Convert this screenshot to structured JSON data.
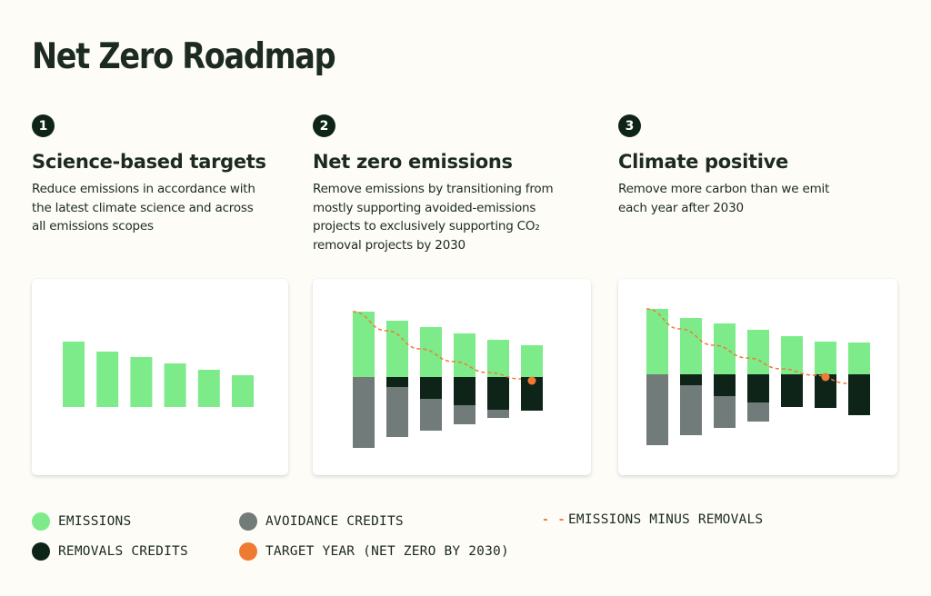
{
  "title": "Net Zero Roadmap",
  "colors": {
    "emissions": "#7deb8a",
    "avoidance": "#717b79",
    "removals": "#0f2418",
    "target": "#ef7b33"
  },
  "steps": [
    {
      "number": "1",
      "title": "Science-based targets",
      "desc_lines": [
        "Reduce emissions in accordance with",
        "the latest climate science and across",
        "all emissions scopes"
      ]
    },
    {
      "number": "2",
      "title": "Net zero emissions",
      "desc_lines": [
        "Remove emissions by transitioning from",
        "mostly supporting avoided-emissions",
        "projects to exclusively supporting CO₂",
        "removal projects by 2030"
      ]
    },
    {
      "number": "3",
      "title": "Climate positive",
      "desc_lines": [
        "Remove more carbon than we emit",
        "each year after 2030"
      ]
    }
  ],
  "legend": {
    "emissions": "EMISSIONS",
    "avoidance": "AVOIDANCE CREDITS",
    "emissions_minus_removals": "EMISSIONS MINUS REMOVALS",
    "removals": "REMOVALS CREDITS",
    "target": "TARGET YEAR (NET ZERO BY 2030)"
  },
  "chart_data": [
    {
      "type": "bar",
      "title": "",
      "ylim": [
        -80,
        80
      ],
      "series": [
        {
          "name": "EMISSIONS",
          "values": [
            72,
            61,
            55,
            48,
            41,
            35
          ]
        }
      ]
    },
    {
      "type": "bar",
      "title": "",
      "ylim": [
        -80,
        80
      ],
      "series": [
        {
          "name": "EMISSIONS",
          "values": [
            72,
            62,
            55,
            48,
            41,
            35
          ]
        },
        {
          "name": "REMOVALS CREDITS",
          "values": [
            0,
            11,
            24,
            31,
            36,
            37
          ]
        },
        {
          "name": "AVOIDANCE CREDITS",
          "values": [
            78,
            55,
            35,
            21,
            9,
            0
          ]
        },
        {
          "name": "EMISSIONS MINUS REMOVALS",
          "values": [
            72,
            51,
            31,
            17,
            5,
            -2
          ]
        }
      ],
      "target_index": 5
    },
    {
      "type": "bar",
      "title": "",
      "ylim": [
        -80,
        80
      ],
      "series": [
        {
          "name": "EMISSIONS",
          "values": [
            72,
            62,
            56,
            49,
            42,
            36,
            35
          ]
        },
        {
          "name": "REMOVALS CREDITS",
          "values": [
            0,
            12,
            24,
            31,
            36,
            37,
            45
          ]
        },
        {
          "name": "AVOIDANCE CREDITS",
          "values": [
            78,
            55,
            35,
            21,
            0,
            0,
            0
          ]
        },
        {
          "name": "EMISSIONS MINUS REMOVALS",
          "values": [
            72,
            50,
            32,
            18,
            6,
            -1,
            -10
          ]
        }
      ],
      "target_index": 5
    }
  ]
}
